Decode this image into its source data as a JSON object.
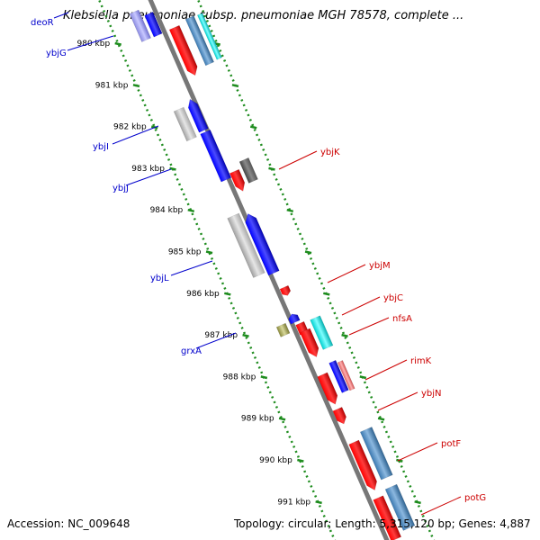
{
  "header": {
    "title": "Klebsiella pneumoniae subsp. pneumoniae MGH 78578, complete ..."
  },
  "footer": {
    "accession": "Accession: NC_009648",
    "summary": "Topology: circular; Length: 5,315,120 bp; Genes: 4,887"
  },
  "colors": {
    "backbone": "#808080",
    "ticks": "#1e8c1e",
    "left_label": "#0000cc",
    "right_label": "#cc0000"
  },
  "ticks": [
    {
      "label": "980 kbp"
    },
    {
      "label": "981 kbp"
    },
    {
      "label": "982 kbp"
    },
    {
      "label": "983 kbp"
    },
    {
      "label": "984 kbp"
    },
    {
      "label": "985 kbp"
    },
    {
      "label": "986 kbp"
    },
    {
      "label": "987 kbp"
    },
    {
      "label": "988 kbp"
    },
    {
      "label": "989 kbp"
    },
    {
      "label": "990 kbp"
    },
    {
      "label": "991 kbp"
    }
  ],
  "genes_left": [
    {
      "label": "deoR"
    },
    {
      "label": "ybjG"
    },
    {
      "label": "ybjI"
    },
    {
      "label": "ybjJ"
    },
    {
      "label": "ybjL"
    },
    {
      "label": "grxA"
    }
  ],
  "genes_right": [
    {
      "label": "ybjK"
    },
    {
      "label": "ybjM"
    },
    {
      "label": "ybjC"
    },
    {
      "label": "nfsA"
    },
    {
      "label": "rimK"
    },
    {
      "label": "ybjN"
    },
    {
      "label": "potF"
    },
    {
      "label": "potG"
    }
  ]
}
